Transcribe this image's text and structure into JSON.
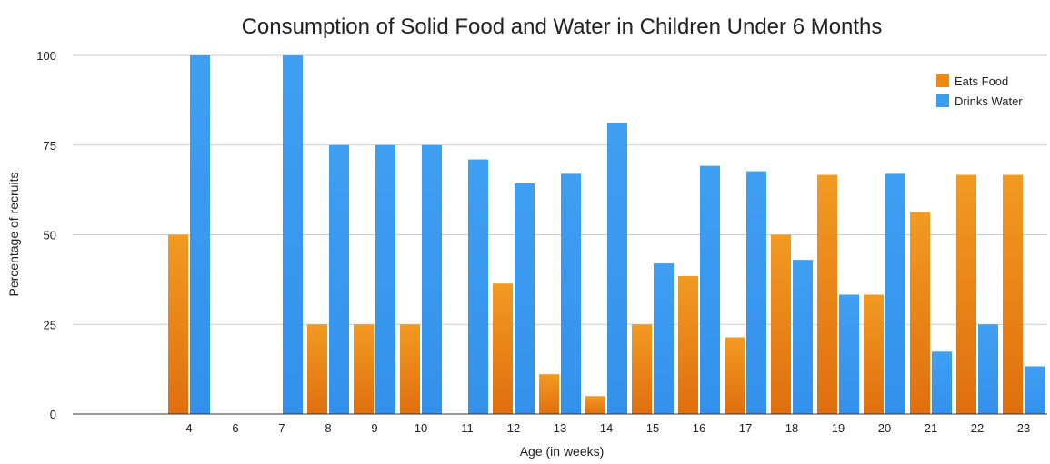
{
  "chart_data": {
    "type": "bar",
    "title": "Consumption of Solid Food and Water in Children Under 6 Months",
    "xlabel": "Age (in weeks)",
    "ylabel": "Percentage of recruits",
    "categories": [
      "4",
      "6",
      "7",
      "8",
      "9",
      "10",
      "11",
      "12",
      "13",
      "14",
      "15",
      "16",
      "17",
      "18",
      "19",
      "20",
      "21",
      "22",
      "23"
    ],
    "series": [
      {
        "name": "Eats Food",
        "color": "#ef8a10",
        "values": [
          50,
          0,
          0,
          25,
          25,
          25,
          0,
          36.4,
          11.1,
          5,
          25,
          38.5,
          21.4,
          50,
          66.7,
          33.3,
          56.3,
          66.7,
          66.7
        ]
      },
      {
        "name": "Drinks Water",
        "color": "#3b9cf0",
        "values": [
          100,
          0,
          100,
          75,
          75,
          75,
          71,
          64.3,
          67,
          81.1,
          42,
          69.2,
          67.7,
          43,
          33.3,
          67,
          17.4,
          25,
          13.3
        ]
      }
    ],
    "ylim": [
      0,
      100
    ],
    "yticks": [
      0,
      25,
      50,
      75,
      100
    ],
    "grid": true,
    "legend_position": "top-right"
  }
}
